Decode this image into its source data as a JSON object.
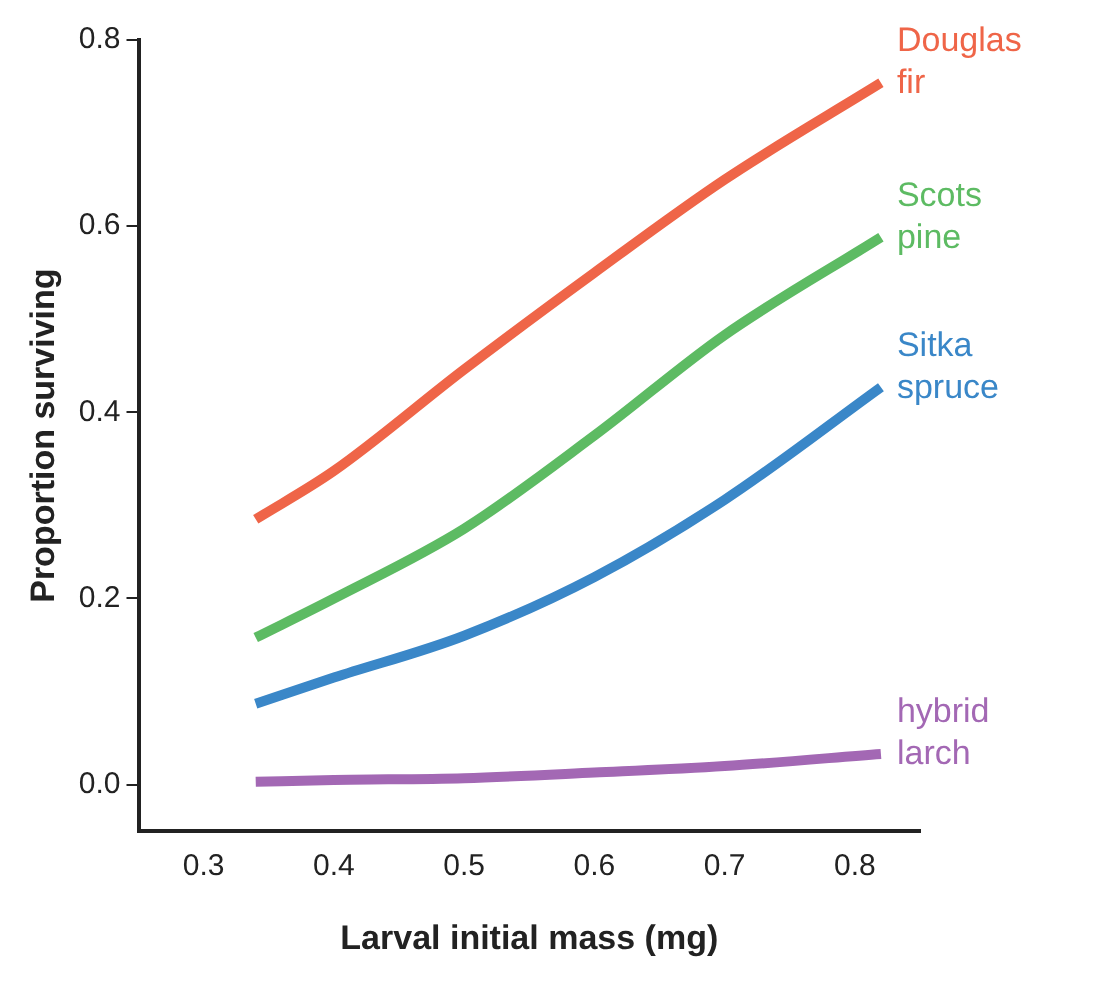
{
  "chart_data": {
    "type": "line",
    "xlabel": "Larval initial mass (mg)",
    "ylabel": "Proportion surviving",
    "xlim": [
      0.25,
      0.85
    ],
    "xticks": [
      0.3,
      0.4,
      0.5,
      0.6,
      0.7,
      0.8
    ],
    "ylim": [
      -0.05,
      0.8
    ],
    "yticks": [
      {
        "value": 0,
        "label": "0.0"
      },
      {
        "value": 0.2,
        "label": "0.2"
      },
      {
        "value": 0.4,
        "label": "0.4"
      },
      {
        "value": 0.6,
        "label": "0.6"
      },
      {
        "value": 0.8,
        "label": "0.8"
      }
    ],
    "grid": false,
    "legend": false,
    "marker": "none",
    "line_style": "solid",
    "x": [
      0.34,
      0.4,
      0.5,
      0.6,
      0.7,
      0.82
    ],
    "series": [
      {
        "name": "Douglas fir",
        "color": "#ef6548",
        "values": [
          0.285,
          0.337,
          0.446,
          0.55,
          0.65,
          0.754
        ]
      },
      {
        "name": "Scots pine",
        "color": "#5dbb63",
        "values": [
          0.158,
          0.2,
          0.275,
          0.375,
          0.483,
          0.588
        ]
      },
      {
        "name": "Sitka spruce",
        "color": "#3a87c8",
        "values": [
          0.087,
          0.115,
          0.16,
          0.223,
          0.306,
          0.427
        ]
      },
      {
        "name": "hybrid larch",
        "color": "#a368b4",
        "values": [
          0.003,
          0.005,
          0.007,
          0.013,
          0.02,
          0.033
        ]
      }
    ]
  }
}
